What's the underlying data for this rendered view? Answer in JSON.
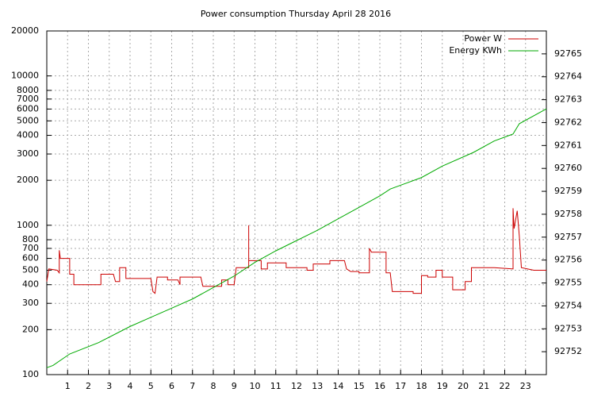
{
  "chart_data": {
    "type": "line",
    "title": "Power consumption Thursday April 28 2016",
    "xlim": [
      0,
      24
    ],
    "xticks": [
      1,
      2,
      3,
      4,
      5,
      6,
      7,
      8,
      9,
      10,
      11,
      12,
      13,
      14,
      15,
      16,
      17,
      18,
      19,
      20,
      21,
      22,
      23
    ],
    "ylim": [
      100,
      20000
    ],
    "log_y": true,
    "yticks": [
      100,
      200,
      300,
      400,
      500,
      600,
      700,
      800,
      1000,
      2000,
      3000,
      4000,
      5000,
      6000,
      7000,
      8000,
      10000,
      20000
    ],
    "y2lim": [
      92751,
      92766
    ],
    "y2ticks": [
      92752,
      92753,
      92754,
      92755,
      92756,
      92757,
      92758,
      92759,
      92760,
      92761,
      92762,
      92763,
      92764,
      92765
    ],
    "grid": true,
    "legend": "top-right",
    "series": [
      {
        "name": "Power W",
        "color": "#cc0000",
        "axis": "y",
        "x": [
          0,
          0.1,
          0.5,
          0.6,
          0.6,
          0.65,
          1.1,
          1.1,
          1.3,
          1.3,
          2.6,
          2.6,
          3.2,
          3.3,
          3.5,
          3.5,
          3.8,
          3.8,
          5.0,
          5.1,
          5.2,
          5.3,
          5.8,
          5.8,
          6.3,
          6.4,
          6.4,
          7.4,
          7.5,
          8.4,
          8.4,
          8.7,
          8.7,
          9.0,
          9.1,
          9.7,
          9.7,
          9.7,
          10.3,
          10.3,
          10.6,
          10.6,
          11.5,
          11.5,
          12.5,
          12.5,
          12.8,
          12.8,
          13.6,
          13.6,
          14.3,
          14.4,
          14.6,
          15.0,
          15.0,
          15.5,
          15.5,
          15.6,
          16.3,
          16.3,
          16.5,
          16.6,
          17.6,
          17.6,
          18.0,
          18.0,
          18.3,
          18.3,
          18.7,
          18.7,
          19.0,
          19.0,
          19.5,
          19.5,
          20.1,
          20.1,
          20.4,
          20.4,
          21.5,
          22.4,
          22.4,
          22.45,
          22.6,
          22.7,
          22.8,
          23.4,
          24
        ],
        "values": [
          420,
          510,
          500,
          480,
          680,
          600,
          600,
          470,
          470,
          400,
          400,
          470,
          470,
          420,
          420,
          520,
          520,
          440,
          440,
          360,
          350,
          450,
          450,
          430,
          430,
          400,
          450,
          450,
          390,
          390,
          430,
          430,
          400,
          400,
          520,
          520,
          1000,
          580,
          580,
          510,
          510,
          560,
          560,
          520,
          520,
          500,
          500,
          550,
          550,
          580,
          580,
          510,
          490,
          490,
          480,
          480,
          700,
          660,
          660,
          480,
          480,
          360,
          360,
          350,
          350,
          460,
          460,
          450,
          450,
          500,
          500,
          450,
          450,
          370,
          370,
          420,
          420,
          520,
          520,
          510,
          1300,
          950,
          1250,
          850,
          520,
          500,
          500
        ]
      },
      {
        "name": "Energy KWh",
        "color": "#00aa00",
        "axis": "y2",
        "x": [
          0,
          0.3,
          1.1,
          2.5,
          4,
          5,
          6,
          7,
          8,
          9,
          10,
          11,
          12,
          13,
          14,
          15,
          16,
          16.5,
          18,
          19,
          20.5,
          21.5,
          22.4,
          22.7,
          24
        ],
        "values": [
          92751.3,
          92751.4,
          92751.9,
          92752.4,
          92753.1,
          92753.5,
          92753.9,
          92754.3,
          92754.8,
          92755.3,
          92755.9,
          92756.4,
          92756.85,
          92757.3,
          92757.8,
          92758.3,
          92758.8,
          92759.1,
          92759.6,
          92760.1,
          92760.7,
          92761.2,
          92761.5,
          92761.95,
          92762.6
        ]
      }
    ]
  }
}
